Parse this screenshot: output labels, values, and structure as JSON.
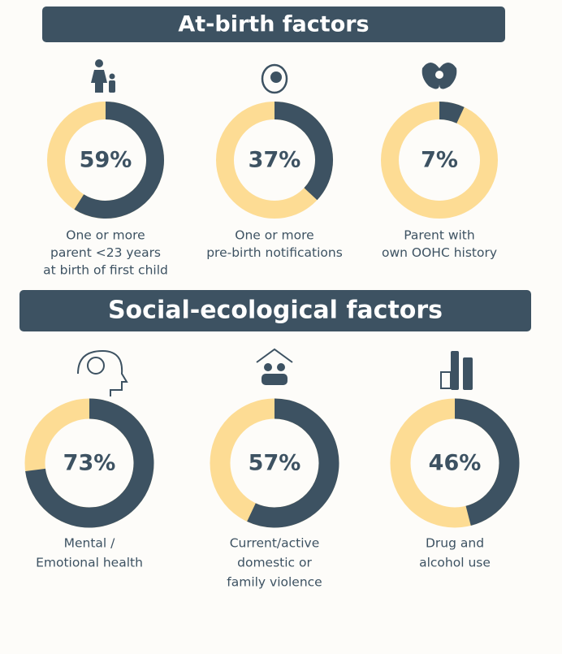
{
  "headings": [
    "At-birth factors",
    "Social-ecological factors"
  ],
  "chart_data": [
    {
      "type": "donut",
      "label_lines": [
        "One or more",
        "parent <23 years",
        "at birth of first child"
      ],
      "values": [
        59
      ],
      "value_labels": [
        "59%"
      ],
      "ylim": [
        0,
        100
      ],
      "colors": [
        "#3d5262",
        "#fddc94"
      ]
    },
    {
      "type": "donut",
      "label_lines": [
        "One or more",
        "pre-birth notifications"
      ],
      "values": [
        37
      ],
      "value_labels": [
        "37%"
      ],
      "ylim": [
        0,
        100
      ],
      "colors": [
        "#3d5262",
        "#fddc94"
      ]
    },
    {
      "type": "donut",
      "label_lines": [
        "Parent with",
        "own OOHC history"
      ],
      "values": [
        7
      ],
      "value_labels": [
        "7%"
      ],
      "ylim": [
        0,
        100
      ],
      "colors": [
        "#3d5262",
        "#fddc94"
      ]
    },
    {
      "type": "donut",
      "label_lines": [
        "Mental /",
        "Emotional health"
      ],
      "values": [
        73
      ],
      "value_labels": [
        "73%"
      ],
      "ylim": [
        0,
        100
      ],
      "colors": [
        "#3d5262",
        "#fddc94"
      ]
    },
    {
      "type": "donut",
      "label_lines": [
        "Current/active",
        "domestic or",
        "family violence"
      ],
      "values": [
        57
      ],
      "value_labels": [
        "57%"
      ],
      "ylim": [
        0,
        100
      ],
      "colors": [
        "#3d5262",
        "#fddc94"
      ]
    },
    {
      "type": "donut",
      "label_lines": [
        "Drug and",
        "alcohol use"
      ],
      "values": [
        46
      ],
      "value_labels": [
        "46%"
      ],
      "ylim": [
        0,
        100
      ],
      "colors": [
        "#3d5262",
        "#fddc94"
      ]
    }
  ]
}
